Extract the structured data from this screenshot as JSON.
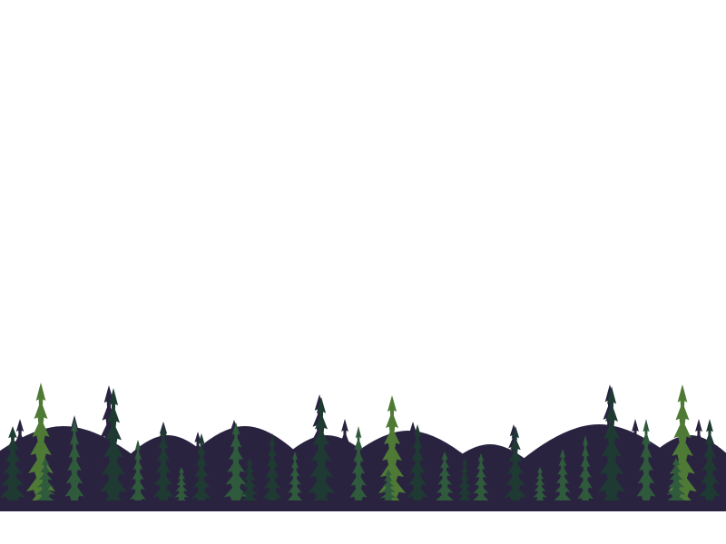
{
  "scene": {
    "background_color": "#ffffff",
    "silhouette_color": "#2a2340",
    "foliage_dark_color": "#1e3a32",
    "foliage_mid_color": "#2f5a3c",
    "foliage_light_color": "#4f7a36",
    "ground_color": "#2a2340"
  }
}
